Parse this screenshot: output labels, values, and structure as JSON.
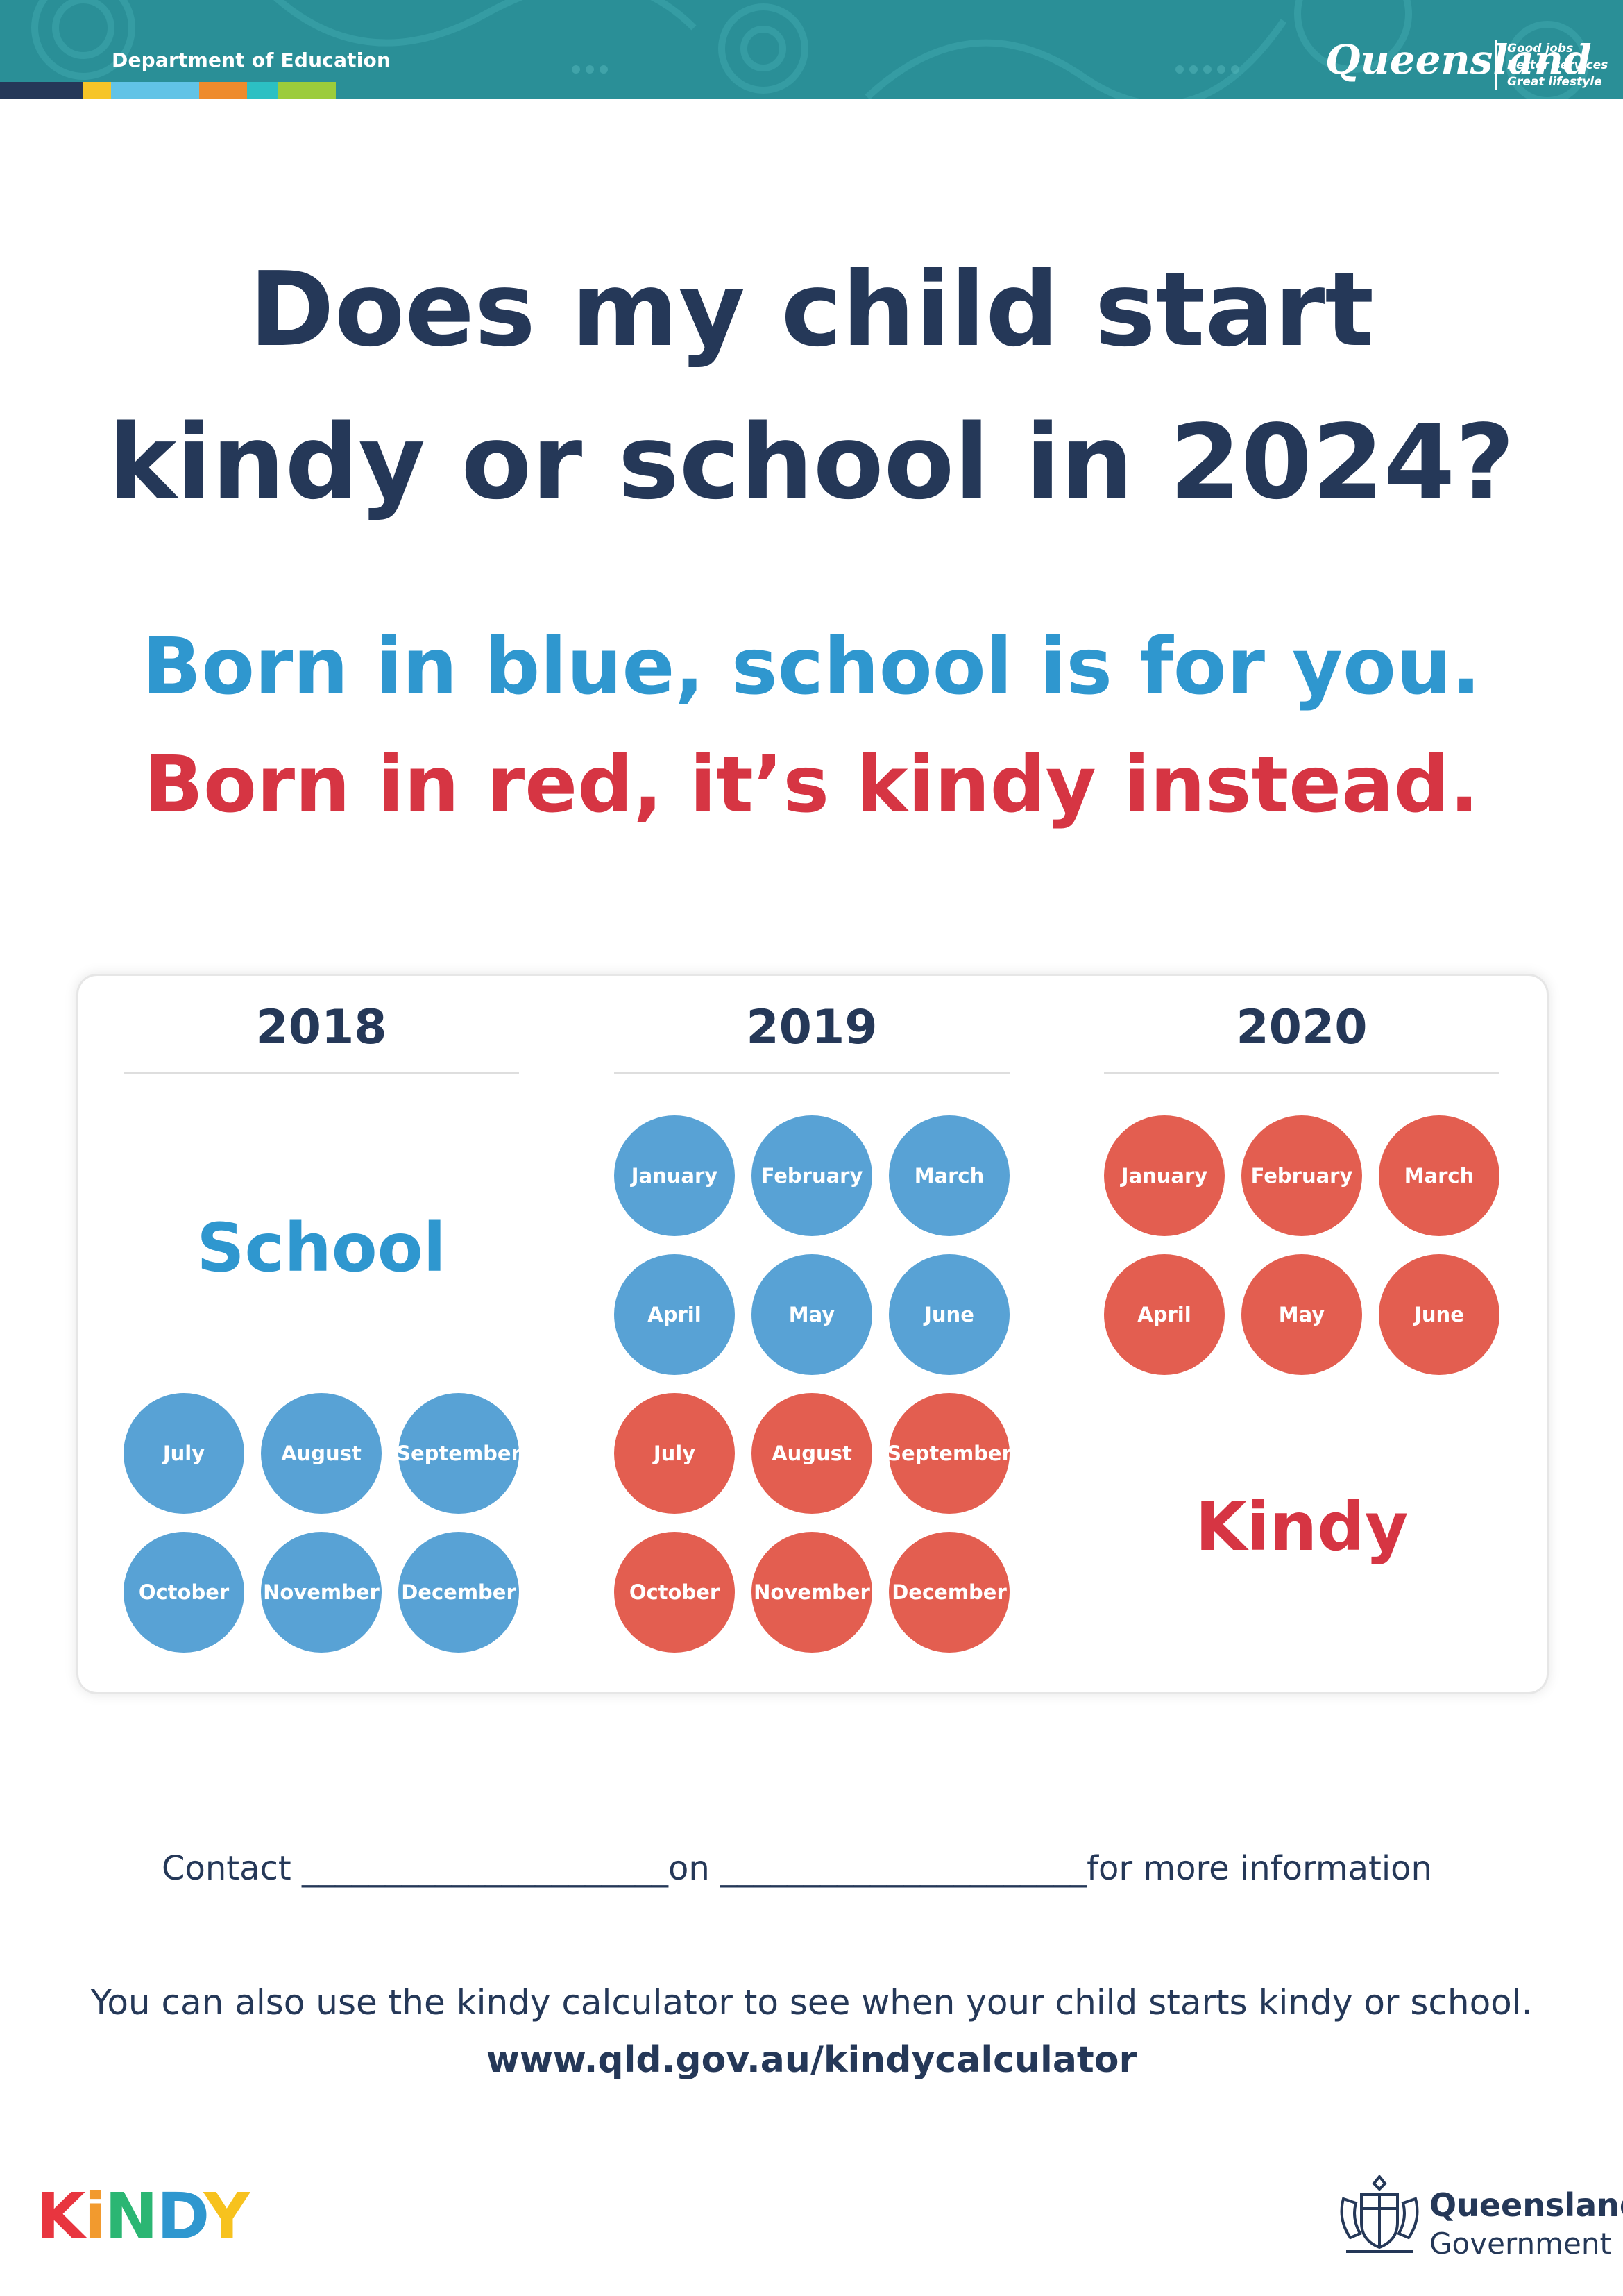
{
  "header": {
    "department": "Department of Education",
    "queensland_wordmark": "Queensland",
    "tagline": [
      "Good jobs",
      "Better services",
      "Great lifestyle"
    ],
    "stripe_colors": [
      "#253858",
      "#f6c528",
      "#61c3e6",
      "#ee8b2c",
      "#2cc0c3",
      "#9ccc3b"
    ]
  },
  "title": {
    "line1": "Does my child start",
    "line2": "kindy or school in 2024?"
  },
  "rhyme": {
    "blue_line": "Born in blue, school is for you.",
    "red_line": "Born in red, it’s kindy instead."
  },
  "colors": {
    "blue": "#58a2d5",
    "red": "#e35e50",
    "navy": "#253858",
    "blue_text": "#2f97cf",
    "red_text": "#d63543"
  },
  "calendar": {
    "years": [
      {
        "year": "2018",
        "label": "School",
        "months": [
          {
            "name": "July",
            "group": "school"
          },
          {
            "name": "August",
            "group": "school"
          },
          {
            "name": "September",
            "group": "school"
          },
          {
            "name": "October",
            "group": "school"
          },
          {
            "name": "November",
            "group": "school"
          },
          {
            "name": "December",
            "group": "school"
          }
        ]
      },
      {
        "year": "2019",
        "months": [
          {
            "name": "January",
            "group": "school"
          },
          {
            "name": "February",
            "group": "school"
          },
          {
            "name": "March",
            "group": "school"
          },
          {
            "name": "April",
            "group": "school"
          },
          {
            "name": "May",
            "group": "school"
          },
          {
            "name": "June",
            "group": "school"
          },
          {
            "name": "July",
            "group": "kindy"
          },
          {
            "name": "August",
            "group": "kindy"
          },
          {
            "name": "September",
            "group": "kindy"
          },
          {
            "name": "October",
            "group": "kindy"
          },
          {
            "name": "November",
            "group": "kindy"
          },
          {
            "name": "December",
            "group": "kindy"
          }
        ]
      },
      {
        "year": "2020",
        "label": "Kindy",
        "months": [
          {
            "name": "January",
            "group": "kindy"
          },
          {
            "name": "February",
            "group": "kindy"
          },
          {
            "name": "March",
            "group": "kindy"
          },
          {
            "name": "April",
            "group": "kindy"
          },
          {
            "name": "May",
            "group": "kindy"
          },
          {
            "name": "June",
            "group": "kindy"
          }
        ]
      }
    ]
  },
  "contact": {
    "prefix": "Contact ",
    "blank1": "______________________",
    "middle": "on ",
    "blank2": "______________________",
    "suffix": "for more information"
  },
  "calculator": {
    "text": "You can also use the kindy calculator to see when your child starts kindy or school.",
    "url": "www.qld.gov.au/kindycalculator"
  },
  "footer": {
    "kindy_logo_letters": [
      {
        "ch": "K",
        "color": "#e8353f"
      },
      {
        "ch": "i",
        "color": "#f29a2e"
      },
      {
        "ch": "N",
        "color": "#2bb673"
      },
      {
        "ch": "D",
        "color": "#2f97cf"
      },
      {
        "ch": "Y",
        "color": "#f7c21e"
      }
    ],
    "government_line1": "Queensland",
    "government_line2": "Government",
    "crest_icon": "coat-of-arms-icon"
  }
}
